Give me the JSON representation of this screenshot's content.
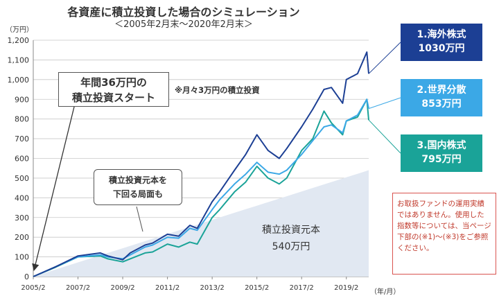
{
  "title": "各資産に積立投資した場合のシミュレーション",
  "subtitle": "＜2005年2月末～2020年2月末＞",
  "chart_data": {
    "type": "line",
    "y_unit_label": "（万円）",
    "x_unit_label": "（年/月）",
    "x_tick_labels": [
      "2005/2",
      "2007/2",
      "2009/2",
      "2011/2",
      "2013/2",
      "2015/2",
      "2017/2",
      "2019/2"
    ],
    "y_tick_labels": [
      "0",
      "100",
      "200",
      "300",
      "400",
      "500",
      "600",
      "700",
      "800",
      "900",
      "1,000",
      "1,100",
      "1,200"
    ],
    "ylim": [
      0,
      1200
    ],
    "x": [
      "2005/2",
      "2006/2",
      "2007/2",
      "2008/2",
      "2008/6",
      "2009/2",
      "2009/6",
      "2010/2",
      "2010/6",
      "2011/2",
      "2011/8",
      "2012/2",
      "2012/6",
      "2013/2",
      "2013/6",
      "2014/2",
      "2014/8",
      "2015/2",
      "2015/8",
      "2016/2",
      "2016/6",
      "2017/2",
      "2017/8",
      "2018/2",
      "2018/6",
      "2018/12",
      "2019/2",
      "2019/8",
      "2020/1",
      "2020/2"
    ],
    "series": [
      {
        "name": "1.海外株式",
        "color": "#1c3f94",
        "values": [
          0,
          50,
          105,
          120,
          105,
          85,
          120,
          160,
          170,
          215,
          205,
          260,
          245,
          380,
          430,
          540,
          620,
          720,
          640,
          600,
          650,
          760,
          850,
          950,
          960,
          880,
          1000,
          1030,
          1140,
          1030
        ]
      },
      {
        "name": "2.世界分散",
        "color": "#3ba8e6",
        "values": [
          0,
          50,
          100,
          110,
          100,
          90,
          110,
          150,
          160,
          200,
          195,
          245,
          235,
          340,
          390,
          470,
          520,
          580,
          530,
          520,
          540,
          620,
          690,
          760,
          770,
          730,
          790,
          820,
          900,
          853
        ]
      },
      {
        "name": "3.国内株式",
        "color": "#1aa398",
        "values": [
          0,
          48,
          100,
          105,
          90,
          75,
          90,
          120,
          125,
          165,
          150,
          175,
          165,
          300,
          340,
          430,
          480,
          560,
          500,
          470,
          500,
          640,
          700,
          840,
          780,
          720,
          790,
          810,
          900,
          795
        ]
      },
      {
        "name": "積立投資元本",
        "color": "#e1e8f2",
        "values": [
          0,
          36,
          72,
          108,
          120,
          144,
          156,
          180,
          192,
          216,
          234,
          252,
          264,
          288,
          300,
          324,
          342,
          360,
          378,
          396,
          408,
          432,
          450,
          468,
          480,
          498,
          504,
          522,
          537,
          540
        ]
      }
    ]
  },
  "legend": [
    {
      "name": "1.海外株式",
      "value": "1030万円",
      "color": "#1c3f94"
    },
    {
      "name": "2.世界分散",
      "value": "853万円",
      "color": "#3ba8e6"
    },
    {
      "name": "3.国内株式",
      "value": "795万円",
      "color": "#1aa398"
    }
  ],
  "callouts": {
    "start_line1": "年間36万円の",
    "start_line2": "積立投資スタート",
    "below_line1": "積立投資元本を",
    "below_line2": "下回る局面も"
  },
  "annotation_monthly": "※月々3万円の積立投資",
  "principal_label_line1": "積立投資元本",
  "principal_label_line2": "540万円",
  "note_text": "お取扱ファンドの運用実績ではありません。使用した指数等については、当ページ下部の(※1)～(※3)をご参照ください。"
}
